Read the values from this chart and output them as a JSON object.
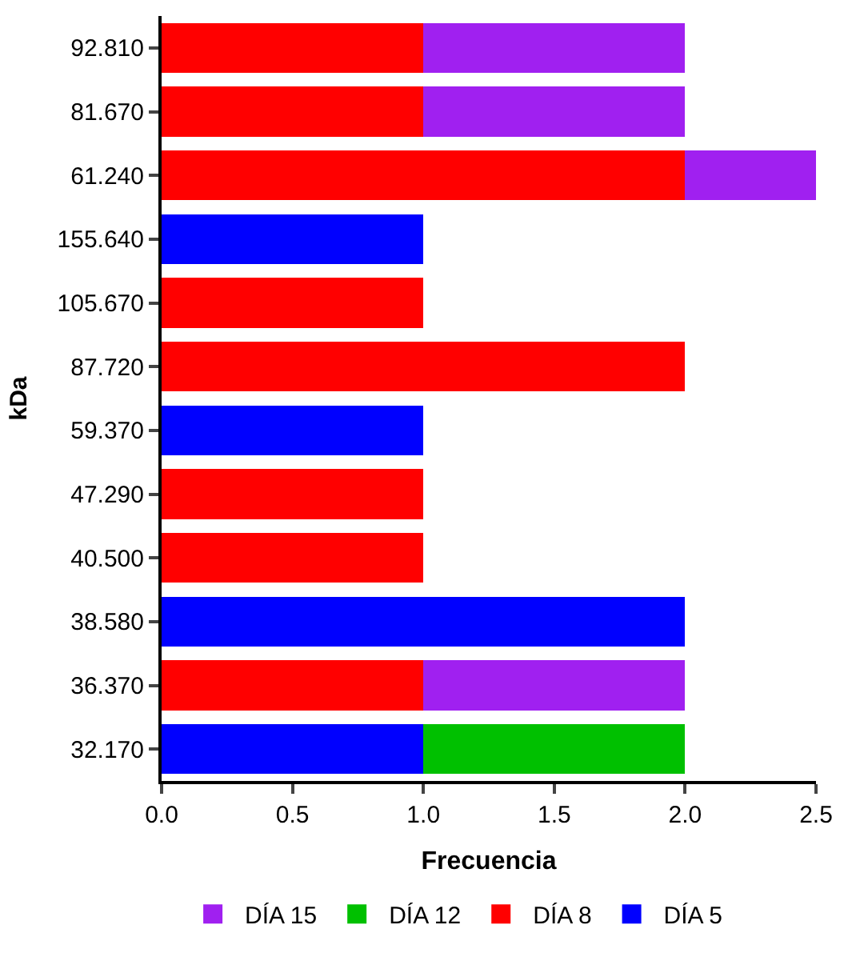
{
  "chart_data": {
    "type": "bar",
    "orientation": "horizontal",
    "stacked": true,
    "xlabel": "Frecuencia",
    "ylabel": "kDa",
    "categories": [
      "92.810",
      "81.670",
      "61.240",
      "155.640",
      "105.670",
      "87.720",
      "59.370",
      "47.290",
      "40.500",
      "38.580",
      "36.370",
      "32.170"
    ],
    "series": [
      {
        "name": "DÍA 5",
        "color": "#0000ff",
        "values": [
          null,
          null,
          null,
          1,
          null,
          null,
          1,
          null,
          null,
          2,
          null,
          1
        ]
      },
      {
        "name": "DÍA 8",
        "color": "#ff0000",
        "values": [
          1,
          1,
          2,
          null,
          1,
          2,
          null,
          1,
          1,
          null,
          1,
          null
        ]
      },
      {
        "name": "DÍA 12",
        "color": "#00c000",
        "values": [
          null,
          null,
          null,
          null,
          null,
          null,
          null,
          null,
          null,
          null,
          null,
          1
        ]
      },
      {
        "name": "DÍA 15",
        "color": "#a020f0",
        "values": [
          1,
          1,
          0.5,
          null,
          null,
          null,
          null,
          null,
          null,
          null,
          1,
          null
        ]
      }
    ],
    "xlim": [
      0,
      2.5
    ],
    "xticks": [
      {
        "value": 0,
        "label": "0.0"
      },
      0.5,
      {
        "value": 1,
        "label": "1.0"
      },
      1.5,
      {
        "value": 2,
        "label": "2.0"
      },
      2.5
    ],
    "legend": "bottom"
  }
}
